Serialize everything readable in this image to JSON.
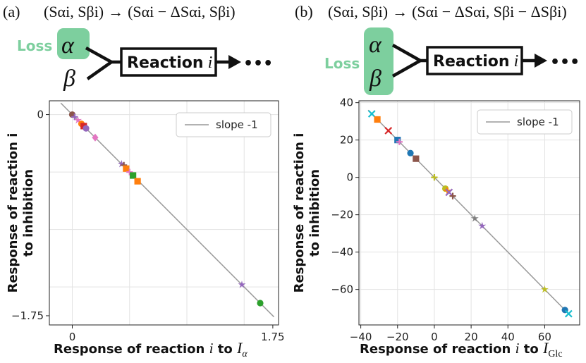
{
  "panels": [
    {
      "id": "a",
      "letter": "(a)",
      "formula_left": "(Sαi, Sβi)",
      "arrow": "→",
      "formula_right": "(Sαi − ΔSαi, Sβi)",
      "loss_label": "Loss",
      "alpha": "α",
      "beta": "β",
      "reaction_label": "Reaction",
      "reaction_index": "i",
      "ellipsis": "•••"
    },
    {
      "id": "b",
      "letter": "(b)",
      "formula_left": "(Sαi, Sβi)",
      "arrow": "→",
      "formula_right": "(Sαi − ΔSαi, Sβi − ΔSβi)",
      "loss_label": "Loss",
      "alpha": "α",
      "beta": "β",
      "reaction_label": "Reaction",
      "reaction_index": "i",
      "ellipsis": "•••"
    }
  ],
  "colors": {
    "loss_green": "#7dcf9e",
    "line_gray": "#999999",
    "grid": "#e3e3e3"
  },
  "chart_data": [
    {
      "type": "scatter",
      "title": "",
      "xlabel": "Response of reaction i to Iα",
      "xlabel_parts": [
        "Response of reaction ",
        "i",
        " to ",
        "I",
        "α"
      ],
      "ylabel_line1": "Response of reaction i",
      "ylabel_line2": "to inhibition",
      "xlim": [
        -0.2,
        1.8
      ],
      "ylim": [
        -1.83,
        0.12
      ],
      "xticks": [
        {
          "value": 0,
          "label": "0"
        },
        {
          "value": 1.75,
          "label": "1.75"
        }
      ],
      "yticks": [
        {
          "value": 0,
          "label": "0"
        },
        {
          "value": -1.75,
          "label": "−1.75"
        }
      ],
      "grid_x": [
        0,
        0.5,
        1.0,
        1.5
      ],
      "grid_y": [
        0,
        -0.5,
        -1.0,
        -1.5
      ],
      "line": {
        "label": "slope -1",
        "x": [
          -0.1,
          1.76
        ],
        "y": [
          0.1,
          -1.76
        ]
      },
      "legend": {
        "position": "top-right",
        "entries": [
          "slope -1"
        ]
      },
      "points": [
        {
          "x": 0.0,
          "y": 0.0,
          "c": "#8c564b",
          "m": "circle"
        },
        {
          "x": 0.02,
          "y": -0.02,
          "c": "#9467bd",
          "m": "plus"
        },
        {
          "x": 0.05,
          "y": -0.05,
          "c": "#e377c2",
          "m": "star"
        },
        {
          "x": 0.08,
          "y": -0.08,
          "c": "#ff7f0e",
          "m": "circle"
        },
        {
          "x": 0.1,
          "y": -0.1,
          "c": "#d62728",
          "m": "square"
        },
        {
          "x": 0.12,
          "y": -0.12,
          "c": "#9467bd",
          "m": "circle"
        },
        {
          "x": 0.2,
          "y": -0.2,
          "c": "#e377c2",
          "m": "diamond"
        },
        {
          "x": 0.43,
          "y": -0.43,
          "c": "#9467bd",
          "m": "star"
        },
        {
          "x": 0.45,
          "y": -0.44,
          "c": "#8c564b",
          "m": "plus"
        },
        {
          "x": 0.47,
          "y": -0.47,
          "c": "#ff7f0e",
          "m": "square"
        },
        {
          "x": 0.5,
          "y": -0.5,
          "c": "#e377c2",
          "m": "plus"
        },
        {
          "x": 0.53,
          "y": -0.53,
          "c": "#2ca02c",
          "m": "square"
        },
        {
          "x": 0.57,
          "y": -0.58,
          "c": "#ff7f0e",
          "m": "square"
        },
        {
          "x": 1.48,
          "y": -1.48,
          "c": "#9467bd",
          "m": "star"
        },
        {
          "x": 1.64,
          "y": -1.64,
          "c": "#2ca02c",
          "m": "circle"
        }
      ]
    },
    {
      "type": "scatter",
      "title": "",
      "xlabel": "Response of reaction i to IGlc",
      "xlabel_parts": [
        "Response of reaction ",
        "i",
        " to ",
        "I",
        "Glc"
      ],
      "ylabel_line1": "Response of reaction i",
      "ylabel_line2": "to inhibition",
      "xlim": [
        -41,
        79
      ],
      "ylim": [
        -79,
        41
      ],
      "xticks": [
        {
          "value": -40,
          "label": "−40"
        },
        {
          "value": -20,
          "label": "−20"
        },
        {
          "value": 0,
          "label": "0"
        },
        {
          "value": 20,
          "label": "20"
        },
        {
          "value": 40,
          "label": "40"
        },
        {
          "value": 60,
          "label": "60"
        }
      ],
      "yticks": [
        {
          "value": 40,
          "label": "40"
        },
        {
          "value": 20,
          "label": "20"
        },
        {
          "value": 0,
          "label": "0"
        },
        {
          "value": -20,
          "label": "−20"
        },
        {
          "value": -40,
          "label": "−40"
        },
        {
          "value": -60,
          "label": "−60"
        }
      ],
      "grid_x": [
        -40,
        -20,
        0,
        20,
        40,
        60
      ],
      "grid_y": [
        40,
        20,
        0,
        -20,
        -40,
        -60
      ],
      "line": {
        "label": "slope -1",
        "x": [
          -36,
          74
        ],
        "y": [
          36,
          -74
        ]
      },
      "legend": {
        "position": "top-right",
        "entries": [
          "slope -1"
        ]
      },
      "points": [
        {
          "x": -34,
          "y": 34,
          "c": "#17becf",
          "m": "x"
        },
        {
          "x": -31,
          "y": 31,
          "c": "#ff7f0e",
          "m": "square"
        },
        {
          "x": -25,
          "y": 25,
          "c": "#d62728",
          "m": "x"
        },
        {
          "x": -20,
          "y": 20,
          "c": "#1f77b4",
          "m": "square"
        },
        {
          "x": -19,
          "y": 19,
          "c": "#e377c2",
          "m": "plus"
        },
        {
          "x": -13,
          "y": 13,
          "c": "#1f77b4",
          "m": "circle"
        },
        {
          "x": -10,
          "y": 10,
          "c": "#8c564b",
          "m": "square"
        },
        {
          "x": 0,
          "y": 0,
          "c": "#bcbd22",
          "m": "plus"
        },
        {
          "x": 6,
          "y": -6,
          "c": "#bcbd22",
          "m": "circle"
        },
        {
          "x": 7,
          "y": -7,
          "c": "#ff7f0e",
          "m": "plus"
        },
        {
          "x": 8,
          "y": -8,
          "c": "#9467bd",
          "m": "x"
        },
        {
          "x": 10,
          "y": -10,
          "c": "#8c564b",
          "m": "plus"
        },
        {
          "x": 22,
          "y": -22,
          "c": "#7f7f7f",
          "m": "star"
        },
        {
          "x": 26,
          "y": -26,
          "c": "#9467bd",
          "m": "star"
        },
        {
          "x": 60,
          "y": -60,
          "c": "#bcbd22",
          "m": "star"
        },
        {
          "x": 71,
          "y": -71,
          "c": "#1f77b4",
          "m": "circle"
        },
        {
          "x": 73,
          "y": -73,
          "c": "#17becf",
          "m": "x"
        }
      ]
    }
  ]
}
